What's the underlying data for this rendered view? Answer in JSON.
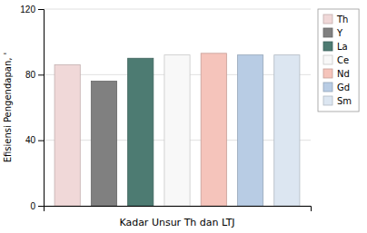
{
  "chart_data": {
    "type": "bar",
    "categories": [
      "Th",
      "Y",
      "La",
      "Ce",
      "Nd",
      "Gd",
      "Sm"
    ],
    "values": [
      86,
      76,
      90,
      92,
      93,
      92,
      92
    ],
    "colors": [
      "#f0d8d8",
      "#808080",
      "#4d7b72",
      "#f8f8f8",
      "#f5c4bb",
      "#b8cce4",
      "#dce6f1"
    ],
    "xlabel": "Kadar Unsur Th dan LTJ",
    "ylabel": "Efisiensi Pengendapan, '",
    "ylim": [
      0,
      120
    ],
    "yticks": [
      0,
      40,
      80,
      120
    ],
    "grid": true,
    "tick_labels": "y",
    "legend": "right"
  }
}
